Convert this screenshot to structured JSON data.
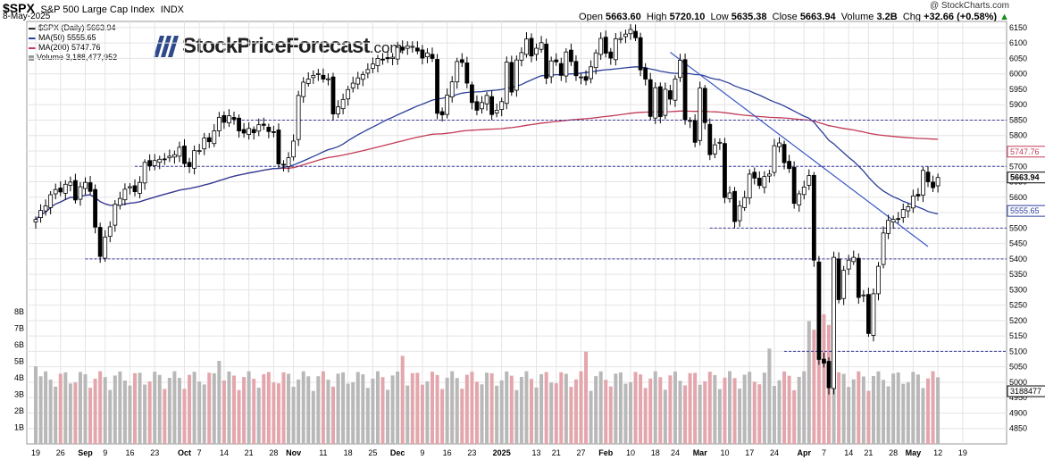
{
  "header": {
    "symbol": "$SPX",
    "name": "S&P 500 Large Cap Index",
    "exchange": "INDX",
    "date": "8-May-2025",
    "credit": "@ StockCharts.com",
    "open_label": "Open",
    "open": "5663.60",
    "high_label": "High",
    "high": "5720.10",
    "low_label": "Low",
    "low": "5635.38",
    "close_label": "Close",
    "close": "5663.94",
    "volume_label": "Volume",
    "volume": "3.2B",
    "chg_label": "Chg",
    "chg": "+32.66 (+0.58%)",
    "chg_arrow": "▲"
  },
  "legend": {
    "price": "$SPX (Daily) 5663.94",
    "ma50": "MA(50) 5555.65",
    "ma200": "MA(200) 5747.76",
    "volume": "Volume 3,188,477,952"
  },
  "watermark": {
    "brand": "StockPriceForecast",
    "domain": ".com"
  },
  "colors": {
    "ma50": "#2b3f9b",
    "ma200": "#c23a55",
    "trendline": "#3b55c5",
    "candle_up": "#ffffff",
    "candle_down": "#000000",
    "hline": "#3a3aa0",
    "vol_up": "#b8b8b8",
    "vol_down": "#e4a6ad",
    "grid": "#e4e4e4"
  },
  "chart_data": {
    "type": "candlestick",
    "ylim": [
      4800,
      6170
    ],
    "y_ticks": [
      4850,
      4900,
      4950,
      5000,
      5050,
      5100,
      5150,
      5200,
      5250,
      5300,
      5350,
      5400,
      5450,
      5500,
      5550,
      5600,
      5650,
      5700,
      5750,
      5800,
      5850,
      5900,
      5950,
      6000,
      6050,
      6100,
      6150
    ],
    "price_labels": [
      {
        "label": "5747.76",
        "value": 5747.76,
        "color": "#c23a55"
      },
      {
        "label": "5663.94",
        "value": 5663.94,
        "color": "#000000"
      },
      {
        "label": "5555.65",
        "value": 5555.65,
        "color": "#2b3f9b"
      },
      {
        "label": "3188477",
        "value": 3.188,
        "axis": "volume",
        "color": "#000000"
      }
    ],
    "volume_ticks": [
      {
        "label": "8B",
        "value": 8
      },
      {
        "label": "7B",
        "value": 7
      },
      {
        "label": "6B",
        "value": 6
      },
      {
        "label": "5B",
        "value": 5
      },
      {
        "label": "4B",
        "value": 4
      },
      {
        "label": "3B",
        "value": 3
      },
      {
        "label": "2B",
        "value": 2
      },
      {
        "label": "1B",
        "value": 1
      }
    ],
    "volume_max": 9.3,
    "x_ticks": [
      {
        "label": "19",
        "i": 0
      },
      {
        "label": "26",
        "i": 5
      },
      {
        "label": "Sep",
        "i": 10,
        "bold": true
      },
      {
        "label": "9",
        "i": 14
      },
      {
        "label": "16",
        "i": 19
      },
      {
        "label": "23",
        "i": 24
      },
      {
        "label": "Oct",
        "i": 30,
        "bold": true
      },
      {
        "label": "7",
        "i": 33
      },
      {
        "label": "14",
        "i": 38
      },
      {
        "label": "21",
        "i": 43
      },
      {
        "label": "28",
        "i": 48
      },
      {
        "label": "Nov",
        "i": 52,
        "bold": true
      },
      {
        "label": "11",
        "i": 58
      },
      {
        "label": "18",
        "i": 63
      },
      {
        "label": "25",
        "i": 68
      },
      {
        "label": "Dec",
        "i": 73,
        "bold": true
      },
      {
        "label": "9",
        "i": 78
      },
      {
        "label": "16",
        "i": 83
      },
      {
        "label": "23",
        "i": 88
      },
      {
        "label": "2025",
        "i": 94,
        "bold": true
      },
      {
        "label": "13",
        "i": 101
      },
      {
        "label": "21",
        "i": 105
      },
      {
        "label": "27",
        "i": 110
      },
      {
        "label": "Feb",
        "i": 115,
        "bold": true
      },
      {
        "label": "10",
        "i": 120
      },
      {
        "label": "18",
        "i": 125
      },
      {
        "label": "24",
        "i": 129
      },
      {
        "label": "Mar",
        "i": 134,
        "bold": true
      },
      {
        "label": "10",
        "i": 139
      },
      {
        "label": "17",
        "i": 144
      },
      {
        "label": "24",
        "i": 149
      },
      {
        "label": "Apr",
        "i": 155,
        "bold": true
      },
      {
        "label": "7",
        "i": 159
      },
      {
        "label": "14",
        "i": 164
      },
      {
        "label": "21",
        "i": 168
      },
      {
        "label": "28",
        "i": 173
      },
      {
        "label": "May",
        "i": 177,
        "bold": true
      },
      {
        "label": "12",
        "i": 182
      },
      {
        "label": "19",
        "i": 187
      }
    ],
    "horizontal_lines": [
      {
        "value": 5850,
        "from": 38
      },
      {
        "value": 5700,
        "from": 20
      },
      {
        "value": 5500,
        "from": 136
      },
      {
        "value": 5400,
        "from": 10
      },
      {
        "value": 5100,
        "from": 151
      }
    ],
    "trendline": [
      {
        "i": 128,
        "value": 6070
      },
      {
        "i": 180,
        "value": 5440
      }
    ],
    "closes": [
      5528,
      5557,
      5572,
      5608,
      5625,
      5617,
      5642,
      5649,
      5591,
      5634,
      5648,
      5619,
      5503,
      5408,
      5471,
      5504,
      5577,
      5596,
      5626,
      5634,
      5618,
      5648,
      5713,
      5702,
      5719,
      5723,
      5722,
      5733,
      5738,
      5762,
      5709,
      5699,
      5751,
      5751,
      5792,
      5780,
      5815,
      5859,
      5843,
      5864,
      5853,
      5815,
      5808,
      5823,
      5809,
      5835,
      5833,
      5813,
      5812,
      5708,
      5705,
      5728,
      5782,
      5930,
      5973,
      5983,
      5995,
      6001,
      5983,
      5984,
      5870,
      5893,
      5917,
      5949,
      5970,
      5987,
      5998,
      6014,
      6032,
      6050,
      6047,
      6049,
      6054,
      6086,
      6077,
      6091,
      6089,
      6074,
      6051,
      6068,
      6050,
      5872,
      5867,
      5931,
      5974,
      6040,
      6037,
      5970,
      5907,
      5882,
      5907,
      5930,
      5868,
      5882,
      5910,
      6038,
      5941,
      6045,
      6069,
      6113,
      6058,
      6083,
      6101,
      5986,
      6042,
      6039,
      5995,
      6071,
      6040,
      5994,
      5990,
      5979,
      6023,
      6068,
      6115,
      6067,
      6051,
      6114,
      6115,
      6129,
      6144,
      6117,
      6013,
      5983,
      5862,
      5955,
      5861,
      5950,
      5918,
      5983,
      6044,
      5852,
      5849,
      5778,
      5954,
      5842,
      5738,
      5770,
      5778,
      5599,
      5614,
      5521,
      5572,
      5599,
      5675,
      5662,
      5638,
      5667,
      5675,
      5767,
      5776,
      5712,
      5693,
      5580,
      5611,
      5633,
      5670,
      5396,
      5074,
      5062,
      4982,
      5405,
      5268,
      5363,
      5396,
      5405,
      5275,
      5283,
      5158,
      5287,
      5376,
      5484,
      5525,
      5528,
      5529,
      5560,
      5569,
      5604,
      5604,
      5687,
      5650,
      5631,
      5664
    ]
  }
}
